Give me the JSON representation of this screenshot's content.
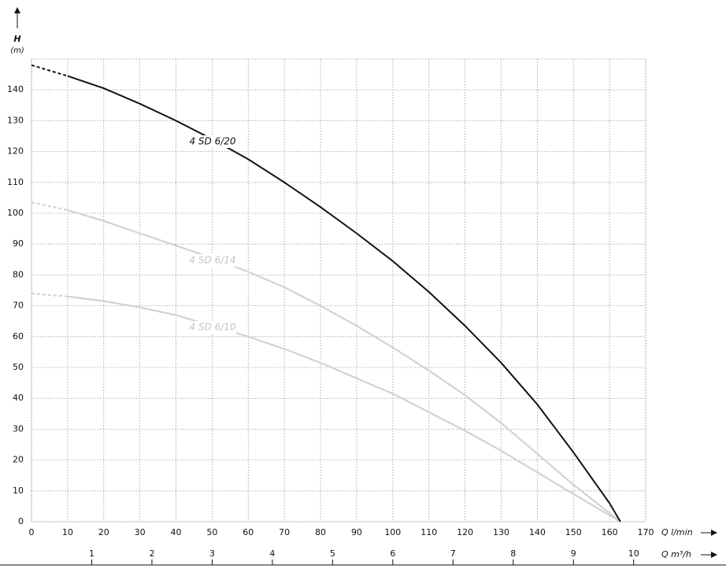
{
  "chart_data": {
    "type": "line",
    "y_label": "H",
    "y_unit": "(m)",
    "x_label": "Q l/min",
    "x2_label": "Q m³/h",
    "xlim": [
      0,
      170
    ],
    "xticks": [
      0,
      10,
      20,
      30,
      40,
      50,
      60,
      70,
      80,
      90,
      100,
      110,
      120,
      130,
      140,
      150,
      160,
      170
    ],
    "x2lim": [
      0,
      10.2
    ],
    "x2ticks": [
      1,
      2,
      3,
      4,
      5,
      6,
      7,
      8,
      9,
      10
    ],
    "ylim": [
      0,
      150
    ],
    "yticks": [
      0,
      10,
      20,
      30,
      40,
      50,
      60,
      70,
      80,
      90,
      100,
      110,
      120,
      130,
      140
    ],
    "grid": true,
    "series": [
      {
        "name": "4 SD 6/20",
        "color": "#111111",
        "x": [
          0,
          10,
          20,
          30,
          40,
          50,
          60,
          70,
          80,
          90,
          100,
          110,
          120,
          130,
          140,
          150,
          160,
          163
        ],
        "values": [
          148,
          144.5,
          140.5,
          135.5,
          130,
          124,
          117.5,
          110,
          102,
          93.5,
          84.5,
          74.5,
          63.5,
          51.5,
          38,
          22.5,
          6,
          0
        ]
      },
      {
        "name": "4 SD 6/14",
        "color": "#d2d2d2",
        "x": [
          0,
          10,
          20,
          30,
          40,
          50,
          60,
          70,
          80,
          90,
          100,
          110,
          120,
          130,
          140,
          150,
          163
        ],
        "values": [
          103.5,
          101,
          97.5,
          93.5,
          89.5,
          85.5,
          81,
          76,
          70,
          63.5,
          56.5,
          49,
          41,
          32,
          22,
          12,
          0
        ]
      },
      {
        "name": "4 SD 6/10",
        "color": "#d2d2d2",
        "x": [
          0,
          10,
          20,
          30,
          40,
          50,
          60,
          70,
          80,
          90,
          100,
          110,
          120,
          130,
          140,
          150,
          163
        ],
        "values": [
          74,
          73,
          71.5,
          69.5,
          67,
          63.5,
          60,
          56,
          51.5,
          46.5,
          41.5,
          35.5,
          29.5,
          23,
          16,
          9,
          0
        ]
      }
    ]
  }
}
